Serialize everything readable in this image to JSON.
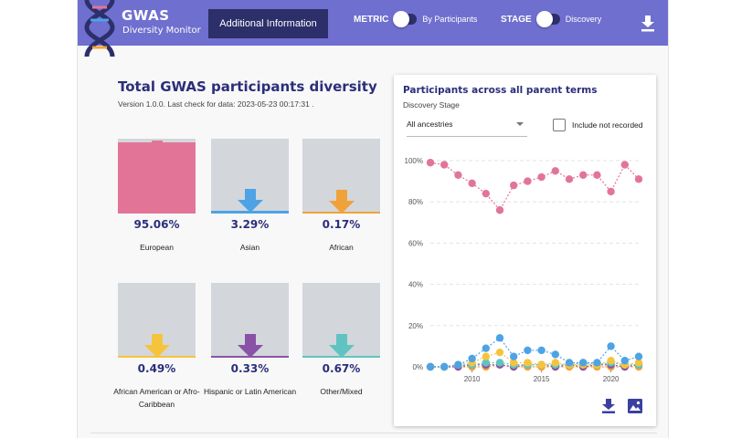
{
  "header": {
    "logo_title": "GWAS",
    "logo_subtitle": "Diversity Monitor",
    "additional_button": "Additional Information",
    "metric_label": "METRIC",
    "metric_value": "By Participants",
    "stage_label": "STAGE",
    "stage_value": "Discovery",
    "color": "#6f6fcf"
  },
  "main": {
    "title": "Total GWAS participants diversity",
    "version": "Version 1.0.0. Last check for data: 2023-05-23 00:17:31 ."
  },
  "ancestries": [
    {
      "name": "European",
      "percent": "95.06%",
      "fraction": 0.9506,
      "color": "#e27597"
    },
    {
      "name": "Asian",
      "percent": "3.29%",
      "fraction": 0.0329,
      "color": "#4da3e5"
    },
    {
      "name": "African",
      "percent": "0.17%",
      "fraction": 0.0017,
      "color": "#f0a23a"
    },
    {
      "name": "African American or Afro-Caribbean",
      "percent": "0.49%",
      "fraction": 0.0049,
      "color": "#f6c43c"
    },
    {
      "name": "Hispanic or Latin American",
      "percent": "0.33%",
      "fraction": 0.0033,
      "color": "#8a52a6"
    },
    {
      "name": "Other/Mixed",
      "percent": "0.67%",
      "fraction": 0.0067,
      "color": "#5fc4c1"
    }
  ],
  "card": {
    "title": "Participants across all parent terms",
    "subtitle": "Discovery Stage",
    "select_value": "All ancestries",
    "checkbox_label": "Include not recorded"
  },
  "chart_data": {
    "type": "line",
    "title": "Participants across all parent terms",
    "subtitle": "Discovery Stage",
    "x": [
      2007,
      2008,
      2009,
      2010,
      2011,
      2012,
      2013,
      2014,
      2015,
      2016,
      2017,
      2018,
      2019,
      2020,
      2021,
      2022
    ],
    "xticks": [
      "2010",
      "2015",
      "2020"
    ],
    "yticks": [
      "0%",
      "20%",
      "40%",
      "60%",
      "80%",
      "100%"
    ],
    "ylim": [
      0,
      100
    ],
    "grid": true,
    "series": [
      {
        "color": "#e27597",
        "values": [
          99,
          98,
          93,
          89,
          84,
          76,
          88,
          90,
          92,
          95,
          91,
          93,
          93,
          85,
          98,
          91
        ]
      },
      {
        "color": "#4da3e5",
        "values": [
          0,
          0,
          1,
          4,
          9,
          14,
          5,
          8,
          8,
          6,
          2,
          2,
          2,
          10,
          3,
          5
        ]
      },
      {
        "color": "#f6c43c",
        "values": [
          0,
          0,
          1,
          2,
          5,
          7,
          2,
          2,
          1,
          2,
          1,
          1,
          1,
          3,
          1,
          2
        ]
      },
      {
        "color": "#5fc4c1",
        "values": [
          0,
          0,
          1,
          1,
          2,
          2,
          1,
          1,
          1,
          1,
          1,
          2,
          1,
          2,
          1,
          1
        ]
      },
      {
        "color": "#8a52a6",
        "values": [
          0,
          0,
          0,
          1,
          1,
          1,
          0,
          1,
          1,
          0,
          1,
          0,
          1,
          1,
          0,
          1
        ]
      },
      {
        "color": "#f0a23a",
        "values": [
          0,
          0,
          0,
          0,
          0,
          1,
          0,
          0,
          0,
          0,
          0,
          0,
          0,
          0,
          0,
          0
        ]
      }
    ]
  },
  "icons": {
    "header_download": "download-icon",
    "card_download": "download-icon",
    "card_image": "image-icon",
    "select_caret": "caret-down-icon"
  }
}
